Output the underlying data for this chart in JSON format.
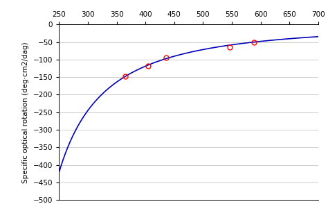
{
  "title": "",
  "xlabel": "",
  "ylabel": "Specific optical rotation (deg·cm2/dag)",
  "xlim": [
    250,
    700
  ],
  "ylim": [
    -500,
    0
  ],
  "xticks": [
    250,
    300,
    350,
    400,
    450,
    500,
    550,
    600,
    650,
    700
  ],
  "yticks": [
    0,
    -50,
    -100,
    -150,
    -200,
    -250,
    -300,
    -350,
    -400,
    -450,
    -500
  ],
  "data_points_x": [
    365,
    405,
    436,
    546,
    589
  ],
  "data_points_y": [
    -148,
    -118,
    -95,
    -65,
    -50
  ],
  "curve_color": "#0000bb",
  "point_color": "#ff0000",
  "background_color": "#ffffff",
  "grid_color": "#bbbbbb",
  "lam0_sq": 24196.0,
  "A_drude": -16136250.0
}
